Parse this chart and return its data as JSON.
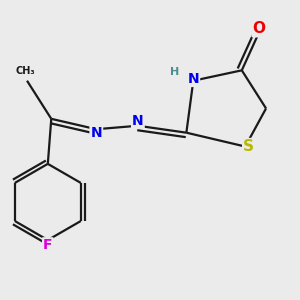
{
  "bg_color": "#ebebeb",
  "bond_color": "#1a1a1a",
  "bond_width": 1.6,
  "atom_colors": {
    "N": "#0000ee",
    "O": "#ee0000",
    "S": "#b8b800",
    "F": "#dd00dd",
    "H": "#4a8f8f",
    "C": "#1a1a1a"
  },
  "font_size": 10,
  "dbo": 0.012
}
